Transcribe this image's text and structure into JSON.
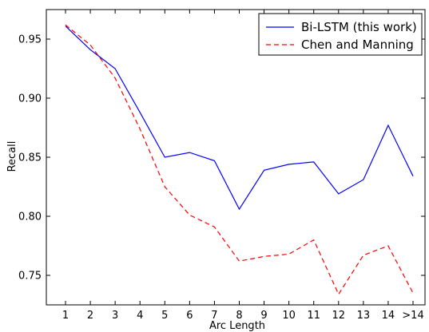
{
  "chart_data": {
    "type": "line",
    "title": "",
    "xlabel": "Arc Length",
    "ylabel": "Recall",
    "categories": [
      "1",
      "2",
      "3",
      "4",
      "5",
      "6",
      "7",
      "8",
      "9",
      "10",
      "11",
      "12",
      "13",
      "14",
      ">14"
    ],
    "ylim": [
      0.725,
      0.975
    ],
    "yticks": [
      "0.75",
      "0.80",
      "0.85",
      "0.90",
      "0.95"
    ],
    "grid": false,
    "legend_position": "top-right",
    "series": [
      {
        "name": "Bi-LSTM (this work)",
        "color": "#0000ff",
        "style": "solid",
        "values": [
          0.961,
          0.941,
          0.925,
          0.888,
          0.85,
          0.854,
          0.847,
          0.806,
          0.839,
          0.844,
          0.846,
          0.819,
          0.831,
          0.877,
          0.834
        ]
      },
      {
        "name": "Chen and Manning",
        "color": "#ff0000",
        "style": "dashed",
        "values": [
          0.962,
          0.945,
          0.917,
          0.874,
          0.825,
          0.801,
          0.791,
          0.762,
          0.766,
          0.768,
          0.78,
          0.734,
          0.767,
          0.775,
          0.735
        ]
      }
    ]
  }
}
